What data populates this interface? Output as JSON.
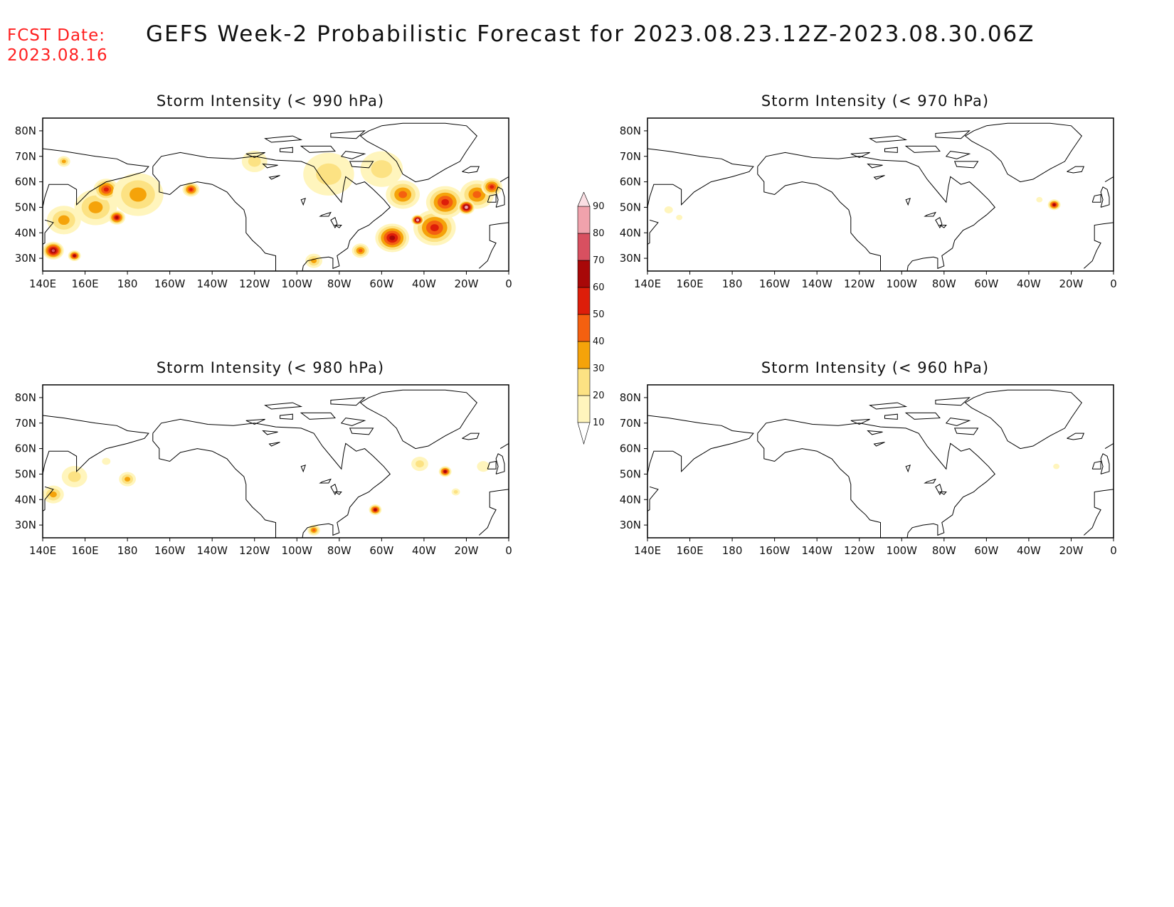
{
  "header": {
    "fcst_label": "FCST Date:",
    "fcst_date": "2023.08.16",
    "title": "GEFS Week-2 Probabilistic Forecast for 2023.08.23.12Z-2023.08.30.06Z"
  },
  "colors": {
    "fcst_text": "#ff2020",
    "coastline": "#000000",
    "levels": [
      "#fff5bd",
      "#fce283",
      "#f5a30a",
      "#f46010",
      "#dd1e0a",
      "#a80808",
      "#d85060",
      "#f0a2ac",
      "#fbdfe4"
    ]
  },
  "axes": {
    "lon_labels": [
      "140E",
      "160E",
      "180",
      "160W",
      "140W",
      "120W",
      "100W",
      "80W",
      "60W",
      "40W",
      "20W",
      "0"
    ],
    "lat_labels": [
      "80N",
      "70N",
      "60N",
      "50N",
      "40N",
      "30N"
    ]
  },
  "legend": {
    "levels": [
      "10",
      "20",
      "30",
      "40",
      "50",
      "60",
      "70",
      "80",
      "90"
    ]
  },
  "panels": [
    {
      "id": "p1",
      "title": "Storm Intensity (< 990 hPa)",
      "hotspots": [
        {
          "lon": 145,
          "lat": 33,
          "r": 5,
          "p": 70
        },
        {
          "lon": 155,
          "lat": 31,
          "r": 3,
          "p": 60
        },
        {
          "lon": 150,
          "lat": 45,
          "r": 8,
          "p": 30
        },
        {
          "lon": 165,
          "lat": 50,
          "r": 10,
          "p": 30
        },
        {
          "lon": 170,
          "lat": 57,
          "r": 6,
          "p": 50
        },
        {
          "lon": 185,
          "lat": 55,
          "r": 12,
          "p": 30
        },
        {
          "lon": 175,
          "lat": 46,
          "r": 4,
          "p": 60
        },
        {
          "lon": 210,
          "lat": 57,
          "r": 4,
          "p": 50
        },
        {
          "lon": 150,
          "lat": 68,
          "r": 3,
          "p": 30
        },
        {
          "lon": 240,
          "lat": 68,
          "r": 6,
          "p": 20
        },
        {
          "lon": 275,
          "lat": 63,
          "r": 12,
          "p": 20
        },
        {
          "lon": 300,
          "lat": 65,
          "r": 10,
          "p": 20
        },
        {
          "lon": 310,
          "lat": 55,
          "r": 8,
          "p": 40
        },
        {
          "lon": 305,
          "lat": 38,
          "r": 8,
          "p": 60
        },
        {
          "lon": 325,
          "lat": 42,
          "r": 10,
          "p": 50
        },
        {
          "lon": 317,
          "lat": 45,
          "r": 3,
          "p": 80
        },
        {
          "lon": 330,
          "lat": 52,
          "r": 9,
          "p": 50
        },
        {
          "lon": 345,
          "lat": 55,
          "r": 8,
          "p": 40
        },
        {
          "lon": 340,
          "lat": 50,
          "r": 4,
          "p": 80
        },
        {
          "lon": 290,
          "lat": 33,
          "r": 4,
          "p": 40
        },
        {
          "lon": 268,
          "lat": 29,
          "r": 4,
          "p": 30
        },
        {
          "lon": 352,
          "lat": 58,
          "r": 5,
          "p": 50
        }
      ]
    },
    {
      "id": "p2",
      "title": "Storm Intensity (< 970 hPa)",
      "hotspots": [
        {
          "lon": 332,
          "lat": 51,
          "r": 3,
          "p": 60
        },
        {
          "lon": 150,
          "lat": 49,
          "r": 2,
          "p": 10
        },
        {
          "lon": 155,
          "lat": 46,
          "r": 1.5,
          "p": 10
        },
        {
          "lon": 325,
          "lat": 53,
          "r": 1.5,
          "p": 10
        }
      ]
    },
    {
      "id": "p3",
      "title": "Storm Intensity (< 980 hPa)",
      "hotspots": [
        {
          "lon": 145,
          "lat": 42,
          "r": 5,
          "p": 30
        },
        {
          "lon": 155,
          "lat": 49,
          "r": 6,
          "p": 20
        },
        {
          "lon": 180,
          "lat": 48,
          "r": 4,
          "p": 30
        },
        {
          "lon": 170,
          "lat": 55,
          "r": 2,
          "p": 10
        },
        {
          "lon": 297,
          "lat": 36,
          "r": 3,
          "p": 60
        },
        {
          "lon": 330,
          "lat": 51,
          "r": 3,
          "p": 60
        },
        {
          "lon": 318,
          "lat": 54,
          "r": 4,
          "p": 20
        },
        {
          "lon": 335,
          "lat": 43,
          "r": 2,
          "p": 20
        },
        {
          "lon": 348,
          "lat": 53,
          "r": 3,
          "p": 10
        },
        {
          "lon": 268,
          "lat": 28,
          "r": 3,
          "p": 40
        }
      ]
    },
    {
      "id": "p4",
      "title": "Storm Intensity (< 960 hPa)",
      "hotspots": [
        {
          "lon": 333,
          "lat": 53,
          "r": 1.5,
          "p": 10
        }
      ]
    }
  ]
}
